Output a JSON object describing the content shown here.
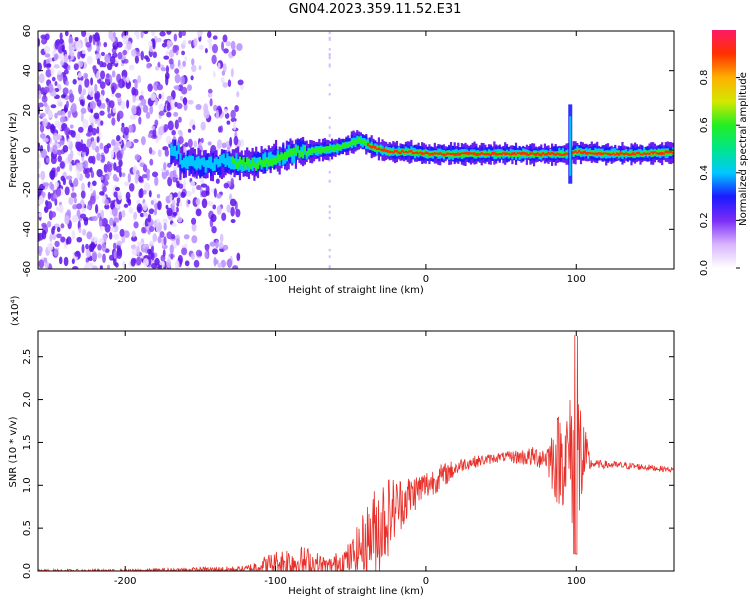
{
  "title": "GN04.2023.359.11.52.E31",
  "colors": {
    "snr_line": "#e8302a",
    "axis": "#000000"
  },
  "chart_data": [
    {
      "type": "heatmap",
      "title": "GN04.2023.359.11.52.E31",
      "xlabel": "Height of straight line (km)",
      "ylabel": "Frequency (Hz)",
      "xlim": [
        -258,
        165
      ],
      "ylim": [
        -60,
        60
      ],
      "x_ticks": [
        -200,
        -100,
        0,
        100
      ],
      "x_tick_labels": [
        "-200",
        "-100",
        "0",
        "100"
      ],
      "y_ticks": [
        -60,
        -40,
        -20,
        0,
        20,
        40,
        60
      ],
      "y_tick_labels": [
        "-60",
        "-40",
        "-20",
        "0",
        "20",
        "40",
        "60"
      ],
      "colorbar": {
        "label": "Normalized spectral amplitude",
        "range": [
          0,
          1
        ],
        "ticks": [
          0.0,
          0.2,
          0.4,
          0.6,
          0.8
        ],
        "tick_labels": [
          "0.0",
          "0.2",
          "0.4",
          "0.6",
          "0.8"
        ],
        "colormap": [
          "#ffffff",
          "#d8b4fe",
          "#7b2cf6",
          "#1a1aff",
          "#00c8ff",
          "#00e68a",
          "#22ee22",
          "#d4e800",
          "#ffb000",
          "#ff3000",
          "#ff1a66"
        ]
      },
      "ridge": [
        {
          "x": -165,
          "f": -6
        },
        {
          "x": -150,
          "f": -7
        },
        {
          "x": -130,
          "f": -6
        },
        {
          "x": -115,
          "f": -7
        },
        {
          "x": -100,
          "f": -4
        },
        {
          "x": -85,
          "f": -1
        },
        {
          "x": -70,
          "f": 0
        },
        {
          "x": -60,
          "f": 1
        },
        {
          "x": -55,
          "f": 2
        },
        {
          "x": -45,
          "f": 5
        },
        {
          "x": -35,
          "f": 1
        },
        {
          "x": -25,
          "f": -1
        },
        {
          "x": -10,
          "f": -1
        },
        {
          "x": 0,
          "f": -2
        },
        {
          "x": 20,
          "f": -2
        },
        {
          "x": 50,
          "f": -2
        },
        {
          "x": 80,
          "f": -2
        },
        {
          "x": 92,
          "f": -2
        },
        {
          "x": 100,
          "f": -1
        },
        {
          "x": 120,
          "f": -2
        },
        {
          "x": 140,
          "f": -2
        },
        {
          "x": 165,
          "f": -1
        }
      ],
      "spike": {
        "x": 96,
        "f_low": -17,
        "f_high": 23
      }
    },
    {
      "type": "line",
      "xlabel": "Height of straight line (km)",
      "ylabel": "SNR (10 * v/v)",
      "y_multiplier": "(x10⁴)",
      "xlim": [
        -258,
        165
      ],
      "ylim": [
        0,
        2.8
      ],
      "x_ticks": [
        -200,
        -100,
        0,
        100
      ],
      "x_tick_labels": [
        "-200",
        "-100",
        "0",
        "100"
      ],
      "y_ticks": [
        0.0,
        0.5,
        1.0,
        1.5,
        2.0,
        2.5
      ],
      "y_tick_labels": [
        "0.0",
        "0.5",
        "1.0",
        "1.5",
        "2.0",
        "2.5"
      ],
      "series": [
        {
          "color": "#e8302a",
          "envelope": [
            {
              "x": -258,
              "base": 0.0,
              "amp": 0.02
            },
            {
              "x": -200,
              "base": 0.0,
              "amp": 0.02
            },
            {
              "x": -120,
              "base": 0.02,
              "amp": 0.04
            },
            {
              "x": -105,
              "base": 0.08,
              "amp": 0.12
            },
            {
              "x": -90,
              "base": 0.1,
              "amp": 0.22
            },
            {
              "x": -78,
              "base": 0.1,
              "amp": 0.18
            },
            {
              "x": -65,
              "base": 0.05,
              "amp": 0.1
            },
            {
              "x": -50,
              "base": 0.15,
              "amp": 0.2
            },
            {
              "x": -40,
              "base": 0.35,
              "amp": 0.4
            },
            {
              "x": -30,
              "base": 0.55,
              "amp": 0.6
            },
            {
              "x": -20,
              "base": 0.75,
              "amp": 0.35
            },
            {
              "x": -5,
              "base": 0.95,
              "amp": 0.2
            },
            {
              "x": 10,
              "base": 1.1,
              "amp": 0.15
            },
            {
              "x": 25,
              "base": 1.25,
              "amp": 0.08
            },
            {
              "x": 50,
              "base": 1.33,
              "amp": 0.05
            },
            {
              "x": 80,
              "base": 1.33,
              "amp": 0.15
            },
            {
              "x": 87,
              "base": 1.3,
              "amp": 0.55
            },
            {
              "x": 95,
              "base": 1.35,
              "amp": 0.6
            },
            {
              "x": 100,
              "base": 1.35,
              "amp": 1.25
            },
            {
              "x": 105,
              "base": 1.3,
              "amp": 0.45
            },
            {
              "x": 110,
              "base": 1.25,
              "amp": 0.05
            },
            {
              "x": 140,
              "base": 1.22,
              "amp": 0.04
            },
            {
              "x": 165,
              "base": 1.18,
              "amp": 0.03
            }
          ]
        }
      ]
    }
  ]
}
